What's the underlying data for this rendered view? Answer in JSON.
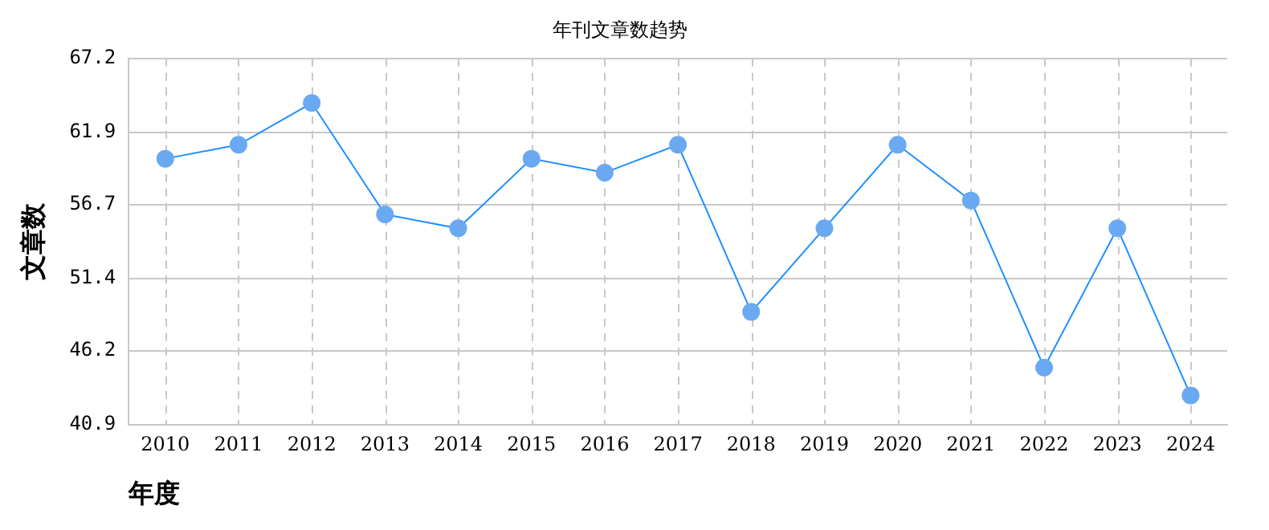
{
  "chart_data": {
    "type": "line",
    "title": "年刊文章数趋势",
    "xlabel": "年度",
    "ylabel": "文章数",
    "categories": [
      "2010",
      "2011",
      "2012",
      "2013",
      "2014",
      "2015",
      "2016",
      "2017",
      "2018",
      "2019",
      "2020",
      "2021",
      "2022",
      "2023",
      "2024"
    ],
    "series": [
      {
        "color": "#1e90ff",
        "values": [
          60,
          61,
          64,
          56,
          55,
          60,
          59,
          61,
          49,
          55,
          61,
          57,
          45,
          55,
          43
        ]
      }
    ],
    "ylim": [
      40.9,
      67.2
    ],
    "yticks": [
      40.9,
      46.2,
      51.4,
      56.7,
      61.9,
      67.2
    ],
    "grid": true,
    "marker": "circle",
    "legend": false
  }
}
